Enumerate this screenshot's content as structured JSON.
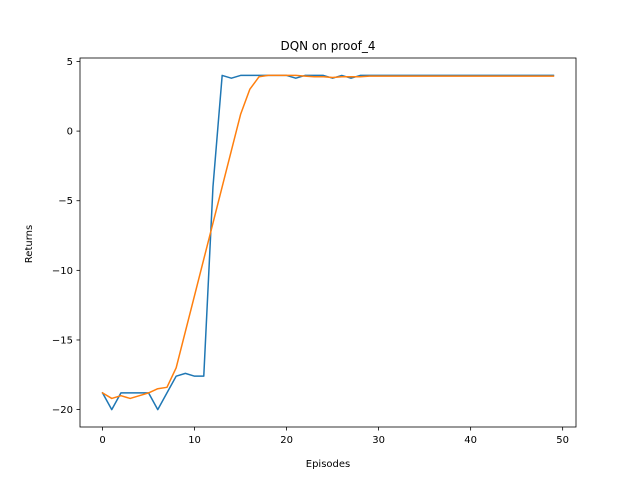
{
  "chart_data": {
    "type": "line",
    "title": "DQN on proof_4",
    "xlabel": "Episodes",
    "ylabel": "Returns",
    "xlim": [
      -2.45,
      51.45
    ],
    "ylim": [
      -21.25,
      5.25
    ],
    "xticks": [
      0,
      10,
      20,
      30,
      40,
      50
    ],
    "yticks": [
      -20,
      -15,
      -10,
      -5,
      0,
      5
    ],
    "grid": false,
    "legend": "none",
    "series": [
      {
        "color": "#1f77b4",
        "x": [
          0,
          1,
          2,
          3,
          4,
          5,
          6,
          7,
          8,
          9,
          10,
          11,
          12,
          13,
          14,
          15,
          16,
          17,
          18,
          19,
          20,
          21,
          22,
          23,
          24,
          25,
          26,
          27,
          28,
          29,
          30,
          31,
          32,
          33,
          34,
          35,
          36,
          37,
          38,
          39,
          40,
          41,
          42,
          43,
          44,
          45,
          46,
          47,
          48,
          49
        ],
        "y": [
          -18.8,
          -20,
          -18.8,
          -18.8,
          -18.8,
          -18.8,
          -20,
          -18.8,
          -17.6,
          -17.4,
          -17.6,
          -17.6,
          -4,
          4,
          3.8,
          4,
          4,
          4,
          4,
          4,
          4,
          3.8,
          4,
          4,
          4,
          3.8,
          4,
          3.8,
          4,
          4,
          4,
          4,
          4,
          4,
          4,
          4,
          4,
          4,
          4,
          4,
          4,
          4,
          4,
          4,
          4,
          4,
          4,
          4,
          4,
          4
        ]
      },
      {
        "color": "#ff7f0e",
        "x": [
          0,
          1,
          2,
          3,
          4,
          5,
          6,
          7,
          8,
          9,
          10,
          11,
          12,
          13,
          14,
          15,
          16,
          17,
          18,
          19,
          20,
          21,
          22,
          23,
          24,
          25,
          26,
          27,
          28,
          29,
          30,
          31,
          32,
          33,
          34,
          35,
          36,
          37,
          38,
          39,
          40,
          41,
          42,
          43,
          44,
          45,
          46,
          47,
          48,
          49
        ],
        "y": [
          -18.8,
          -19.2,
          -19,
          -19.2,
          -19,
          -18.8,
          -18.5,
          -18.4,
          -17,
          -14.4,
          -11.8,
          -9.2,
          -6.6,
          -4,
          -1.4,
          1.2,
          3,
          3.9,
          4,
          4,
          4,
          4,
          3.95,
          3.9,
          3.9,
          3.85,
          3.9,
          3.9,
          3.9,
          3.95,
          3.95,
          3.95,
          3.95,
          3.95,
          3.95,
          3.95,
          3.95,
          3.95,
          3.95,
          3.95,
          3.95,
          3.95,
          3.95,
          3.95,
          3.95,
          3.95,
          3.95,
          3.95,
          3.95,
          3.95
        ]
      }
    ]
  }
}
